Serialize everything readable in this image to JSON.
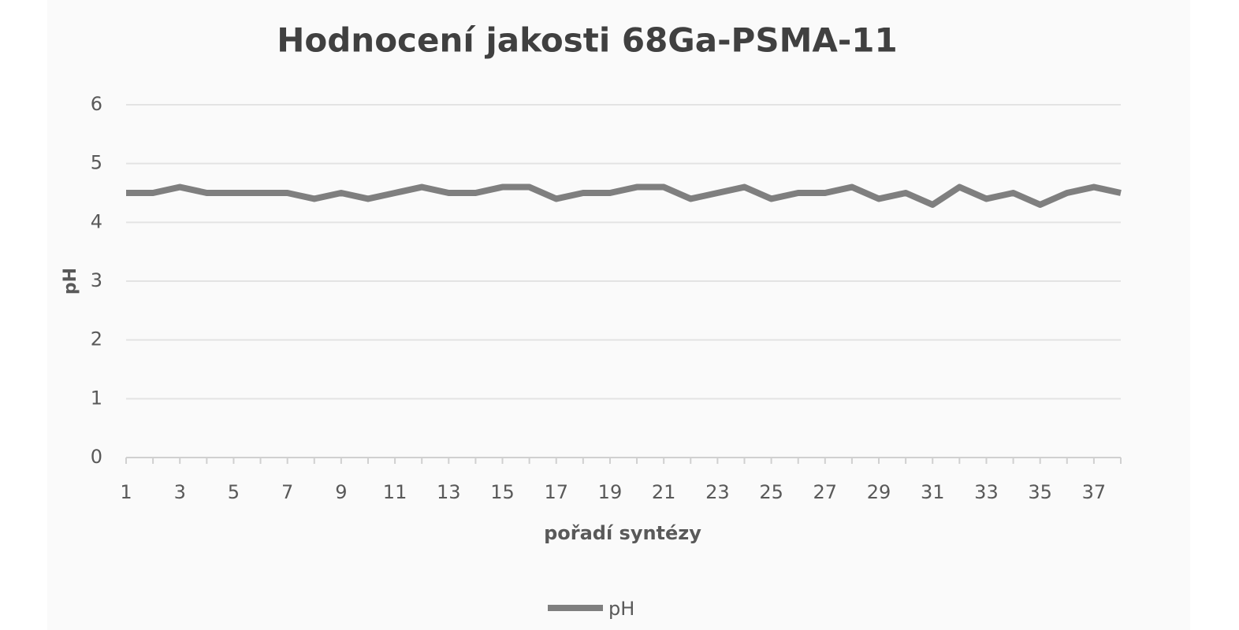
{
  "chart_data": {
    "type": "line",
    "title": "Hodnocení jakosti 68Ga-PSMA-11",
    "x_label": "pořadí syntézy",
    "y_label": "pH",
    "categories": [
      "1",
      null,
      "3",
      null,
      "5",
      null,
      "7",
      null,
      "9",
      null,
      "11",
      null,
      "13",
      null,
      "15",
      null,
      "17",
      null,
      "19",
      null,
      "21",
      null,
      "23",
      null,
      "25",
      null,
      "27",
      null,
      "29",
      null,
      "31",
      null,
      "33",
      null,
      "35",
      null,
      "37",
      null
    ],
    "series": [
      {
        "name": "pH",
        "color": "#7f7f7f",
        "values": [
          4.5,
          4.5,
          4.6,
          4.5,
          4.5,
          4.5,
          4.5,
          4.4,
          4.5,
          4.4,
          4.5,
          4.6,
          4.5,
          4.5,
          4.6,
          4.6,
          4.4,
          4.5,
          4.5,
          4.6,
          4.6,
          4.4,
          4.5,
          4.6,
          4.4,
          4.5,
          4.5,
          4.6,
          4.4,
          4.5,
          4.3,
          4.6,
          4.4,
          4.5,
          4.3,
          4.5,
          4.6,
          4.5
        ]
      }
    ],
    "ylim": [
      0,
      6
    ],
    "yticks": [
      0,
      1,
      2,
      3,
      4,
      5,
      6
    ],
    "grid": true,
    "legend": "bottom"
  }
}
